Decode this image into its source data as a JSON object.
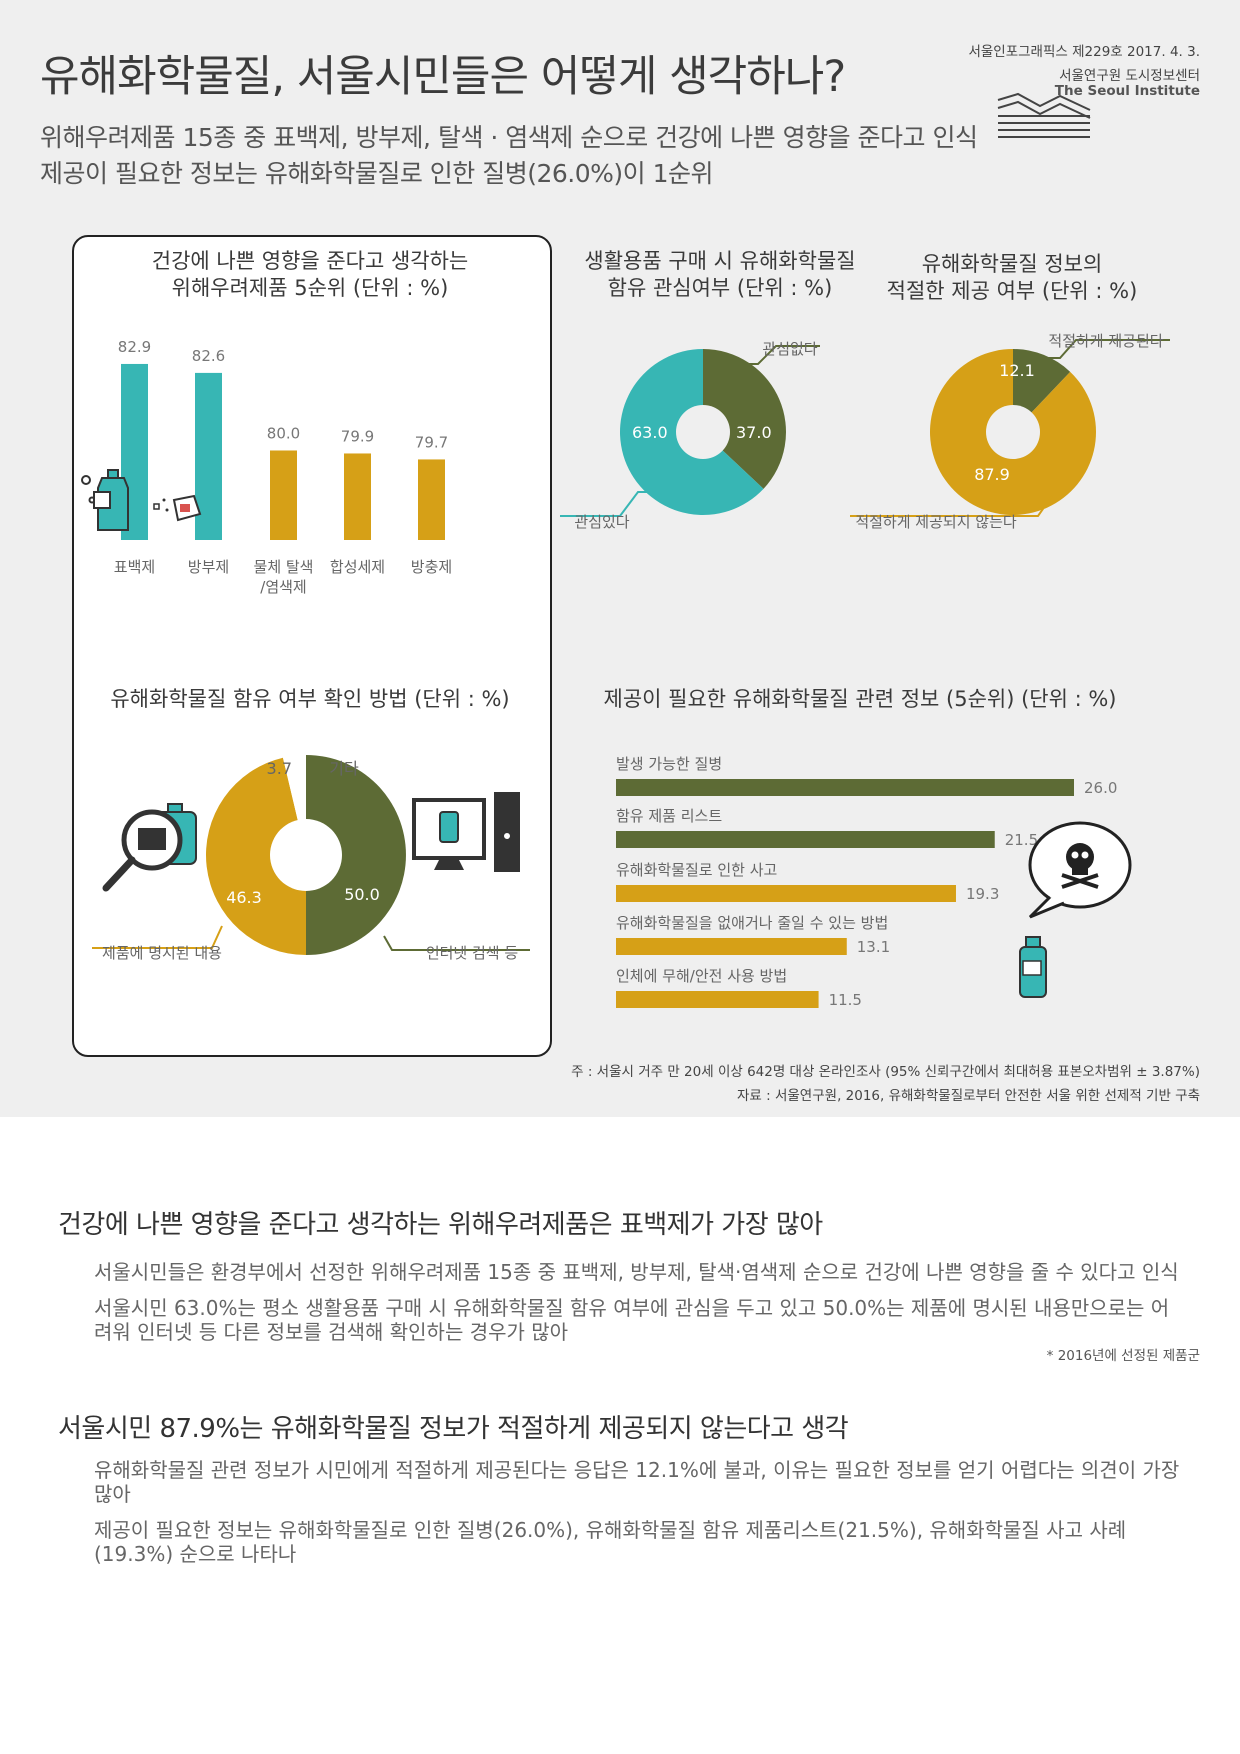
{
  "header": {
    "title": "유해화학물질, 서울시민들은 어떻게 생각하나?",
    "subtitle1": "위해우려제품 15종 중 표백제, 방부제, 탈색 · 염색제 순으로 건강에 나쁜 영향을 준다고 인식",
    "subtitle2": "제공이 필요한 정보는 유해화학물질로 인한 질병(26.0%)이 1순위",
    "issue": "서울인포그래픽스 제229호 2017. 4. 3.",
    "org": "서울연구원 도시정보센터",
    "org_en": "The Seoul Institute"
  },
  "colors": {
    "teal": "#37b6b4",
    "gold": "#d6a017",
    "olive": "#5d6b35",
    "bg": "#efefef"
  },
  "chart_data": [
    {
      "type": "bar",
      "title": "건강에 나쁜 영향을 준다고 생각하는\n위해우려제품 5순위 (단위 : %)",
      "title_line1": "건강에 나쁜 영향을 준다고 생각하는",
      "title_line2": "위해우려제품 5순위 (단위 : %)",
      "categories": [
        "표백제",
        "방부제",
        "물체 탈색\n/염색제",
        "합성세제",
        "방충제"
      ],
      "values": [
        82.9,
        82.6,
        80.0,
        79.9,
        79.7
      ],
      "value_labels": [
        "82.9",
        "82.6",
        "80.0",
        "79.9",
        "79.7"
      ],
      "ylim": [
        77,
        83.2
      ],
      "bar_colors": [
        "teal",
        "teal",
        "gold",
        "gold",
        "gold"
      ],
      "icons": [
        "bleach-bottle-icon",
        "sprayer-icon"
      ]
    },
    {
      "type": "pie",
      "title_line1": "생활용품 구매 시 유해화학물질",
      "title_line2": "함유 관심여부 (단위 : %)",
      "slices": [
        {
          "label": "관심없다",
          "value": 37.0,
          "value_label": "37.0",
          "color": "olive"
        },
        {
          "label": "관심있다",
          "value": 63.0,
          "value_label": "63.0",
          "color": "teal"
        }
      ]
    },
    {
      "type": "pie",
      "title_line1": "유해화학물질 정보의",
      "title_line2": "적절한 제공 여부 (단위 : %)",
      "slices": [
        {
          "label": "적절하게 제공된다",
          "value": 12.1,
          "value_label": "12.1",
          "color": "olive"
        },
        {
          "label": "적절하게 제공되지 않는다",
          "value": 87.9,
          "value_label": "87.9",
          "color": "gold"
        }
      ]
    },
    {
      "type": "pie",
      "title": "유해화학물질 함유 여부 확인 방법 (단위 : %)",
      "slices": [
        {
          "label": "인터넷 검색 등",
          "value": 50.0,
          "value_label": "50.0",
          "color": "olive"
        },
        {
          "label": "제품에 명시된 내용",
          "value": 46.3,
          "value_label": "46.3",
          "color": "gold"
        },
        {
          "label": "기타",
          "value": 3.7,
          "value_label": "3.7",
          "color": "white"
        }
      ]
    },
    {
      "type": "bar",
      "orientation": "horizontal",
      "title": "제공이 필요한 유해화학물질 관련 정보 (5순위) (단위 : %)",
      "categories": [
        "발생 가능한 질병",
        "함유 제품 리스트",
        "유해화학물질로 인한 사고",
        "유해화학물질을 없애거나 줄일 수 있는 방법",
        "인체에 무해/안전 사용 방법"
      ],
      "values": [
        26.0,
        21.5,
        19.3,
        13.1,
        11.5
      ],
      "value_labels": [
        "26.0",
        "21.5",
        "19.3",
        "13.1",
        "11.5"
      ],
      "xlim": [
        0,
        26
      ],
      "bar_colors": [
        "olive",
        "olive",
        "gold",
        "gold",
        "gold"
      ]
    }
  ],
  "notes": {
    "note1": "주 : 서울시 거주 만 20세 이상 642명 대상 온라인조사 (95% 신뢰구간에서 최대허용 표본오차범위 ± 3.87%)",
    "note2": "자료 : 서울연구원, 2016, 유해화학물질로부터 안전한 서울 위한 선제적 기반 구축"
  },
  "body": {
    "s1_title": "건강에 나쁜 영향을 준다고 생각하는 위해우려제품은 표백제가 가장 많아",
    "s1_p1": "서울시민들은 환경부에서 선정한 위해우려제품 15종 중 표백제, 방부제, 탈색·염색제 순으로 건강에 나쁜 영향을 줄 수 있다고 인식",
    "s1_p2": "서울시민 63.0%는 평소 생활용품 구매 시 유해화학물질 함유 여부에 관심을 두고 있고 50.0%는 제품에 명시된 내용만으로는 어려워 인터넷 등 다른 정보를 검색해 확인하는 경우가 많아",
    "s1_note": "* 2016년에 선정된 제품군",
    "s2_title": "서울시민 87.9%는 유해화학물질 정보가 적절하게 제공되지 않는다고 생각",
    "s2_p1": "유해화학물질 관련 정보가 시민에게 적절하게 제공된다는 응답은 12.1%에 불과, 이유는 필요한 정보를 얻기 어렵다는 의견이 가장 많아",
    "s2_p2": "제공이 필요한 정보는 유해화학물질로 인한 질병(26.0%), 유해화학물질 함유 제품리스트(21.5%), 유해화학물질 사고 사례(19.3%) 순으로 나타나"
  }
}
